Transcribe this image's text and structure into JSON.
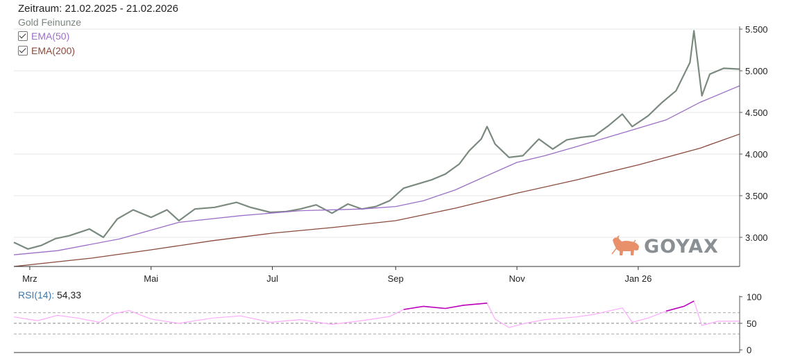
{
  "header": {
    "period": "Zeitraum: 21.02.2025 - 21.02.2026",
    "instrument": "Gold Feinunze"
  },
  "legend": [
    {
      "label": "EMA(50)",
      "color": "#9b6fc7",
      "checked": true
    },
    {
      "label": "EMA(200)",
      "color": "#8a4a3c",
      "checked": true
    }
  ],
  "rsi": {
    "name": "RSI(14)",
    "value": "54,33",
    "color": "#bb00bb",
    "light_color": "#ffaaff"
  },
  "logo": {
    "text": "GOYAX",
    "icon": "bull-icon",
    "icon_color": "#e8906a",
    "text_color": "#8a8f93"
  },
  "colors": {
    "price": "#7b8a7e",
    "ema50": "#9b6fc7",
    "ema200": "#8a4a3c",
    "grid": "#e6e6e6"
  },
  "chart_data": [
    {
      "type": "line",
      "title": "Gold Feinunze",
      "x_ticks": [
        "Mrz",
        "Mai",
        "Jul",
        "Sep",
        "Nov",
        "Jan 26"
      ],
      "x_tick_dates": [
        "2025-03-01",
        "2025-05-01",
        "2025-07-01",
        "2025-09-01",
        "2025-11-01",
        "2026-01-01"
      ],
      "y_ticks": [
        "3.000",
        "3.500",
        "4.000",
        "4.500",
        "5.000",
        "5.500"
      ],
      "y_tick_values": [
        3000,
        3500,
        4000,
        4500,
        5000,
        5500
      ],
      "ylim": [
        2650,
        5600
      ],
      "xlim": [
        "2025-02-21",
        "2026-02-21"
      ],
      "grid": true,
      "legend_position": "top-left",
      "series": [
        {
          "name": "Gold Feinunze",
          "points": [
            [
              "2025-02-21",
              2940
            ],
            [
              "2025-02-28",
              2860
            ],
            [
              "2025-03-07",
              2905
            ],
            [
              "2025-03-14",
              2985
            ],
            [
              "2025-03-21",
              3020
            ],
            [
              "2025-03-31",
              3100
            ],
            [
              "2025-04-07",
              3000
            ],
            [
              "2025-04-14",
              3220
            ],
            [
              "2025-04-22",
              3330
            ],
            [
              "2025-04-25",
              3300
            ],
            [
              "2025-05-01",
              3240
            ],
            [
              "2025-05-09",
              3330
            ],
            [
              "2025-05-15",
              3200
            ],
            [
              "2025-05-23",
              3340
            ],
            [
              "2025-06-02",
              3360
            ],
            [
              "2025-06-13",
              3420
            ],
            [
              "2025-06-20",
              3360
            ],
            [
              "2025-06-30",
              3300
            ],
            [
              "2025-07-08",
              3310
            ],
            [
              "2025-07-15",
              3340
            ],
            [
              "2025-07-23",
              3390
            ],
            [
              "2025-07-31",
              3290
            ],
            [
              "2025-08-08",
              3400
            ],
            [
              "2025-08-15",
              3340
            ],
            [
              "2025-08-22",
              3370
            ],
            [
              "2025-08-29",
              3440
            ],
            [
              "2025-09-05",
              3590
            ],
            [
              "2025-09-12",
              3640
            ],
            [
              "2025-09-19",
              3690
            ],
            [
              "2025-09-26",
              3760
            ],
            [
              "2025-10-03",
              3880
            ],
            [
              "2025-10-08",
              4040
            ],
            [
              "2025-10-14",
              4180
            ],
            [
              "2025-10-17",
              4330
            ],
            [
              "2025-10-21",
              4120
            ],
            [
              "2025-10-28",
              3960
            ],
            [
              "2025-11-04",
              3980
            ],
            [
              "2025-11-12",
              4180
            ],
            [
              "2025-11-19",
              4060
            ],
            [
              "2025-11-26",
              4170
            ],
            [
              "2025-12-03",
              4200
            ],
            [
              "2025-12-10",
              4220
            ],
            [
              "2025-12-17",
              4340
            ],
            [
              "2025-12-24",
              4480
            ],
            [
              "2025-12-29",
              4330
            ],
            [
              "2026-01-06",
              4460
            ],
            [
              "2026-01-13",
              4620
            ],
            [
              "2026-01-20",
              4760
            ],
            [
              "2026-01-27",
              5100
            ],
            [
              "2026-01-29",
              5480
            ],
            [
              "2026-02-02",
              4700
            ],
            [
              "2026-02-06",
              4960
            ],
            [
              "2026-02-13",
              5030
            ],
            [
              "2026-02-21",
              5020
            ]
          ]
        },
        {
          "name": "EMA(50)",
          "points": [
            [
              "2025-02-21",
              2790
            ],
            [
              "2025-03-15",
              2840
            ],
            [
              "2025-04-15",
              2980
            ],
            [
              "2025-05-15",
              3180
            ],
            [
              "2025-06-15",
              3260
            ],
            [
              "2025-07-15",
              3320
            ],
            [
              "2025-08-15",
              3340
            ],
            [
              "2025-09-01",
              3370
            ],
            [
              "2025-09-15",
              3440
            ],
            [
              "2025-10-01",
              3570
            ],
            [
              "2025-10-15",
              3720
            ],
            [
              "2025-11-01",
              3900
            ],
            [
              "2025-11-15",
              3980
            ],
            [
              "2025-12-01",
              4090
            ],
            [
              "2025-12-15",
              4190
            ],
            [
              "2026-01-01",
              4310
            ],
            [
              "2026-01-15",
              4410
            ],
            [
              "2026-02-01",
              4620
            ],
            [
              "2026-02-21",
              4820
            ]
          ]
        },
        {
          "name": "EMA(200)",
          "points": [
            [
              "2025-02-21",
              2650
            ],
            [
              "2025-04-01",
              2750
            ],
            [
              "2025-05-01",
              2850
            ],
            [
              "2025-06-01",
              2960
            ],
            [
              "2025-07-01",
              3050
            ],
            [
              "2025-08-01",
              3120
            ],
            [
              "2025-09-01",
              3200
            ],
            [
              "2025-10-01",
              3350
            ],
            [
              "2025-11-01",
              3530
            ],
            [
              "2025-12-01",
              3690
            ],
            [
              "2026-01-01",
              3870
            ],
            [
              "2026-02-01",
              4070
            ],
            [
              "2026-02-21",
              4240
            ]
          ]
        }
      ]
    },
    {
      "type": "line",
      "title": "RSI(14)",
      "x_ticks": [],
      "y_ticks": [
        "0",
        "50",
        "100"
      ],
      "y_tick_values": [
        0,
        50,
        100
      ],
      "ylim": [
        -5,
        110
      ],
      "reference_lines": [
        30,
        50,
        70
      ],
      "xlim": [
        "2025-02-21",
        "2026-02-21"
      ],
      "series": [
        {
          "name": "RSI(14)",
          "points": [
            [
              "2025-02-21",
              62
            ],
            [
              "2025-03-05",
              55
            ],
            [
              "2025-03-15",
              65
            ],
            [
              "2025-03-25",
              60
            ],
            [
              "2025-04-05",
              52
            ],
            [
              "2025-04-12",
              68
            ],
            [
              "2025-04-20",
              74
            ],
            [
              "2025-05-01",
              58
            ],
            [
              "2025-05-15",
              50
            ],
            [
              "2025-06-01",
              60
            ],
            [
              "2025-06-15",
              64
            ],
            [
              "2025-06-30",
              52
            ],
            [
              "2025-07-15",
              57
            ],
            [
              "2025-07-31",
              48
            ],
            [
              "2025-08-15",
              55
            ],
            [
              "2025-08-29",
              63
            ],
            [
              "2025-09-05",
              76
            ],
            [
              "2025-09-15",
              82
            ],
            [
              "2025-09-26",
              78
            ],
            [
              "2025-10-05",
              84
            ],
            [
              "2025-10-17",
              88
            ],
            [
              "2025-10-21",
              58
            ],
            [
              "2025-10-28",
              42
            ],
            [
              "2025-11-05",
              50
            ],
            [
              "2025-11-15",
              57
            ],
            [
              "2025-12-01",
              62
            ],
            [
              "2025-12-10",
              67
            ],
            [
              "2025-12-24",
              79
            ],
            [
              "2025-12-29",
              52
            ],
            [
              "2026-01-06",
              60
            ],
            [
              "2026-01-15",
              73
            ],
            [
              "2026-01-24",
              82
            ],
            [
              "2026-01-29",
              92
            ],
            [
              "2026-02-02",
              46
            ],
            [
              "2026-02-10",
              54
            ],
            [
              "2026-02-21",
              54
            ]
          ]
        }
      ]
    }
  ]
}
